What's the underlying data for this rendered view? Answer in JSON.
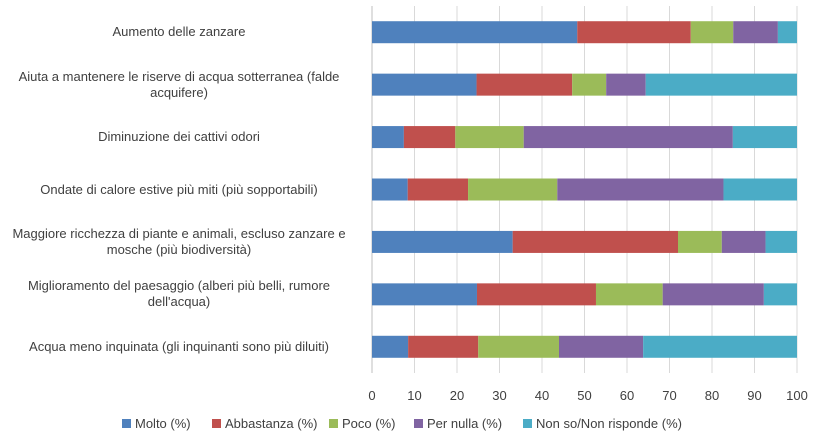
{
  "chart_data": {
    "type": "bar",
    "orientation": "horizontal",
    "stacked": true,
    "categories": [
      "Aumento delle zanzare",
      "Aiuta a mantenere le riserve di acqua sotterranea (falde acquifere)",
      "Diminuzione dei cattivi odori",
      "Ondate di calore estive più miti (più sopportabili)",
      "Maggiore ricchezza di piante e animali, escluso zanzare e mosche (più biodiversità)",
      "Miglioramento del paesaggio (alberi più belli, rumore dell'acqua)",
      "Acqua meno inquinata (gli inquinanti sono più diluiti)"
    ],
    "series": [
      {
        "name": "Molto (%)",
        "color": "#4F81BD",
        "values": [
          48.3,
          24.6,
          7.5,
          8.4,
          33.1,
          24.7,
          8.5
        ]
      },
      {
        "name": "Abbastanza (%)",
        "color": "#C0504D",
        "values": [
          26.7,
          22.5,
          12.1,
          14.2,
          38.9,
          28.0,
          16.5
        ]
      },
      {
        "name": "Poco (%)",
        "color": "#9BBB59",
        "values": [
          10.0,
          8.0,
          16.1,
          21.0,
          10.3,
          15.7,
          19.0
        ]
      },
      {
        "name": "Per nulla (%)",
        "color": "#8064A2",
        "values": [
          10.5,
          9.3,
          49.2,
          39.1,
          10.3,
          23.8,
          19.8
        ]
      },
      {
        "name": "Non so/Non risponde (%)",
        "color": "#4BACC6",
        "values": [
          4.5,
          35.6,
          15.1,
          17.3,
          7.4,
          7.8,
          36.2
        ]
      }
    ],
    "xlim": [
      0,
      100
    ],
    "xticks": [
      0,
      10,
      20,
      30,
      40,
      50,
      60,
      70,
      80,
      90,
      100
    ],
    "grid": true,
    "legend": "bottom",
    "title": "",
    "xlabel": "",
    "ylabel": ""
  }
}
